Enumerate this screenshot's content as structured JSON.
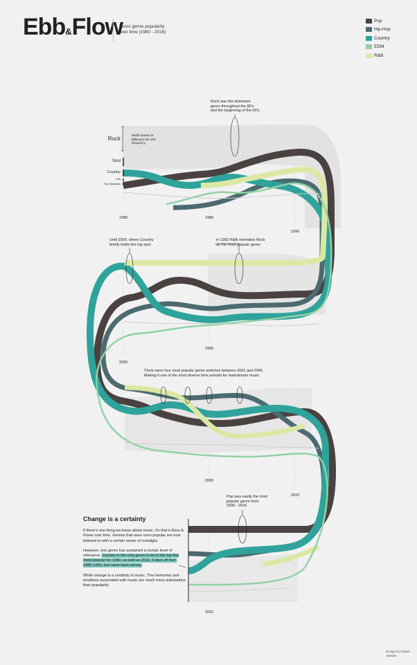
{
  "header": {
    "title_main": "Ebb",
    "title_amp": "&",
    "title_end": "Flow",
    "subtitle": "Music genre popularity over time (1980 - 2016)"
  },
  "legend": [
    {
      "label": "Pop",
      "color": "#4a4240"
    },
    {
      "label": "Hip-Hop",
      "color": "#4c6a70"
    },
    {
      "label": "Country",
      "color": "#2fa39b"
    },
    {
      "label": "EDM",
      "color": "#8fd2a6"
    },
    {
      "label": "R&B",
      "color": "#dbe8a4"
    }
  ],
  "genre_labels": [
    "Rock",
    "Soul",
    "Country",
    "Folk",
    "Pop Standards"
  ],
  "width_note": "Width based on Billboard Hot 100 frequency",
  "years": [
    "1980",
    "1985",
    "1990",
    "1995",
    "2000",
    "2005",
    "2010",
    "2015"
  ],
  "annotations": {
    "rock": "Rock was the dominant genre throughout the 80's and the beginning of the 90's",
    "country2000": "Until 2000, where Country briefly holds the top spot",
    "rnb1993": "In 1993 R&B overtakes Rock as the most popular genre",
    "switches": "There were four most popular genre switches between 2001 and 2006. Making it one of the most diverse time periods for mainstream music",
    "pop": "Pop was easily the most popular genre from 2006 - 2016"
  },
  "essay": {
    "heading": "Change is a certainty",
    "p1": "If there's one thing we know about music, it's that it Ebss & Flows over time. Genres that were once popular are now listened to with a certain sense of nostalgia.",
    "p2a": "However, one genre has sustained a certain level of relevance.",
    "p2b": "Country is the only genre to be in the top five most popular for 1980, as well as 2016. It died off from 1985-1995, but came back strong.",
    "p3": "While change is a certainty in music. The memories and emotions associated with music are much more substantive than popularity."
  },
  "credit": "Design by Robert Janssis",
  "chart_data": {
    "type": "area",
    "x_range": [
      1980,
      2016
    ],
    "series": [
      {
        "name": "Pop"
      },
      {
        "name": "Hip-Hop"
      },
      {
        "name": "Country"
      },
      {
        "name": "EDM"
      },
      {
        "name": "R&B"
      }
    ]
  }
}
